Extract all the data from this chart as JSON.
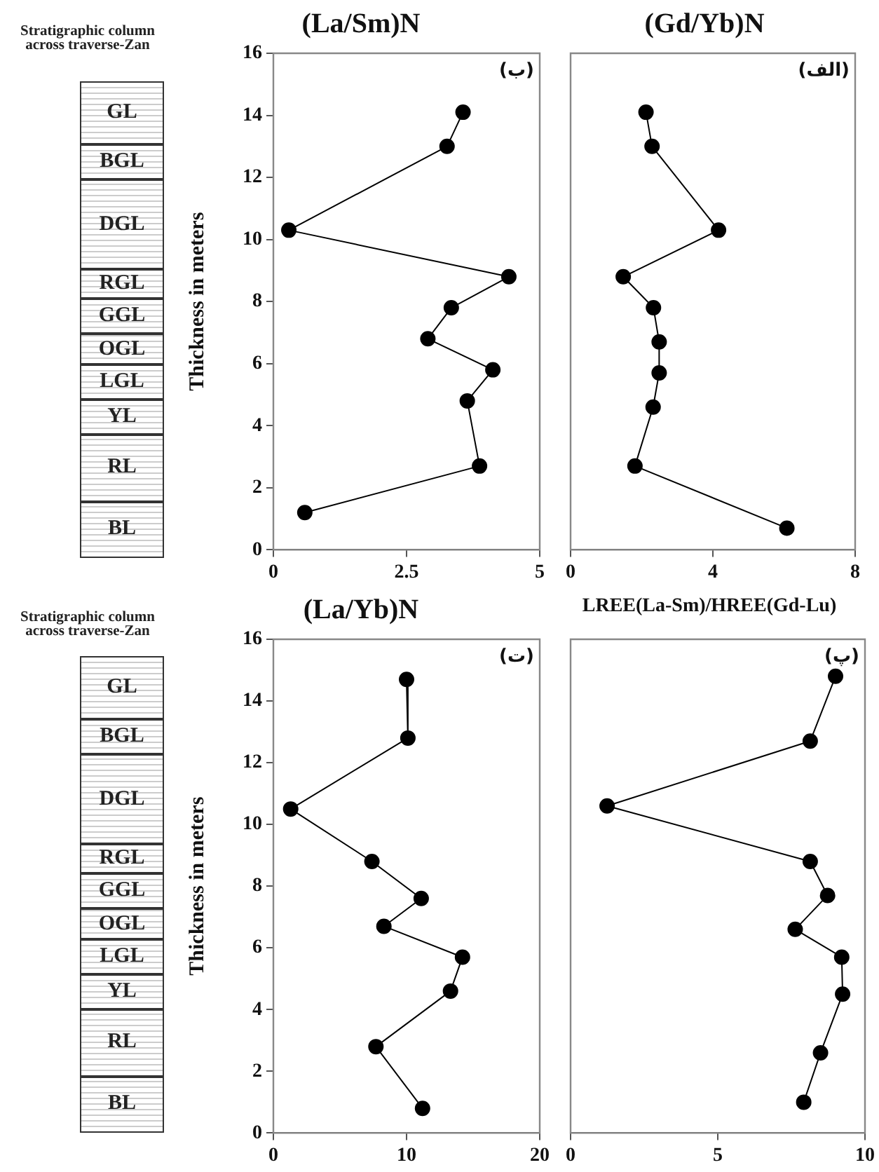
{
  "chart_data": [
    {
      "type": "line",
      "title": "(La/Sm)N",
      "ylabel": "Thickness in meters",
      "annotations": [
        "(ب)",
        "Stratigraphic column across traverse-Zan",
        "GL",
        "BGL",
        "DGL",
        "RGL",
        "GGL",
        "OGL",
        "LGL",
        "YL",
        "RL",
        "BL"
      ],
      "series": [
        {
          "color": "#000000",
          "x": [
            3.56,
            3.26,
            0.29,
            4.42,
            3.34,
            2.9,
            4.12,
            3.64,
            3.87,
            0.59
          ],
          "values": [
            14.1,
            13.0,
            10.3,
            8.8,
            7.8,
            6.8,
            5.8,
            4.8,
            2.7,
            1.2
          ]
        }
      ],
      "xlim": [
        0,
        5
      ],
      "xticks": [
        0,
        2.5,
        5
      ],
      "ylim": [
        0,
        16
      ],
      "yticks": [
        0,
        2,
        4,
        6,
        8,
        10,
        12,
        14,
        16
      ],
      "grid": false,
      "legend": false,
      "marker": "circle"
    },
    {
      "type": "line",
      "title": "(Gd/Yb)N",
      "annotations": [
        "(الف)"
      ],
      "series": [
        {
          "color": "#000000",
          "x": [
            2.12,
            2.29,
            4.16,
            1.48,
            2.33,
            2.49,
            2.49,
            2.32,
            1.81,
            6.08
          ],
          "values": [
            14.1,
            13.0,
            10.3,
            8.8,
            7.8,
            6.7,
            5.7,
            4.6,
            2.7,
            0.7
          ]
        }
      ],
      "xlim": [
        0,
        8
      ],
      "xticks": [
        0,
        4,
        8
      ],
      "ylim": [
        0,
        16
      ],
      "yticks": [
        0,
        2,
        4,
        6,
        8,
        10,
        12,
        14,
        16
      ],
      "tick_labels": "x",
      "grid": false,
      "legend": false,
      "marker": "circle"
    },
    {
      "type": "line",
      "title": "(La/Yb)N",
      "ylabel": "Thickness in meters",
      "annotations": [
        "(ت)",
        "Stratigraphic column across traverse-Zan",
        "GL",
        "BGL",
        "DGL",
        "RGL",
        "GGL",
        "OGL",
        "LGL",
        "YL",
        "RL",
        "BL"
      ],
      "series": [
        {
          "color": "#000000",
          "x": [
            10.0,
            10.1,
            1.3,
            7.4,
            11.1,
            8.3,
            14.2,
            13.3,
            7.7,
            11.2
          ],
          "values": [
            14.7,
            12.8,
            10.5,
            8.8,
            7.6,
            6.7,
            5.7,
            4.6,
            2.8,
            0.8
          ]
        }
      ],
      "xlim": [
        0,
        20
      ],
      "xticks": [
        0,
        10,
        20
      ],
      "ylim": [
        0,
        16
      ],
      "yticks": [
        0,
        2,
        4,
        6,
        8,
        10,
        12,
        14,
        16
      ],
      "grid": false,
      "legend": false,
      "marker": "circle"
    },
    {
      "type": "line",
      "title": "LREE(La-Sm)/HREE(Gd-Lu)",
      "annotations": [
        "(پ)"
      ],
      "series": [
        {
          "color": "#000000",
          "x": [
            9.0,
            8.14,
            1.24,
            8.14,
            8.73,
            7.63,
            9.21,
            9.24,
            8.49,
            7.92
          ],
          "values": [
            14.8,
            12.7,
            10.6,
            8.8,
            7.7,
            6.6,
            5.7,
            4.5,
            2.6,
            1.0
          ]
        }
      ],
      "xlim": [
        0,
        10
      ],
      "xticks": [
        0,
        5,
        10
      ],
      "ylim": [
        0,
        16
      ],
      "yticks": [
        0,
        2,
        4,
        6,
        8,
        10,
        12,
        14,
        16
      ],
      "tick_labels": "x",
      "grid": false,
      "legend": false,
      "marker": "circle"
    }
  ]
}
